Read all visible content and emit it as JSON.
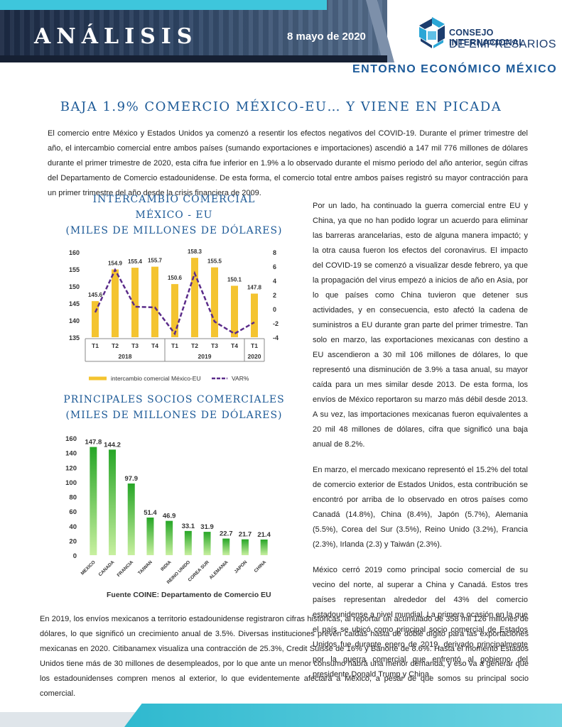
{
  "header": {
    "title": "ANÁLISIS",
    "date": "8 mayo de 2020",
    "logo_line1": "CONSEJO INTERNACIONAL",
    "logo_line2": "DE EMPRESARIOS",
    "subtitle": "ENTORNO ECONÓMICO MÉXICO"
  },
  "article": {
    "title": "BAJA 1.9% COMERCIO MÉXICO-EU… Y VIENE EN PICADA",
    "intro": "El comercio entre México y Estados Unidos ya comenzó a resentir los efectos negativos del COVID-19. Durante el primer trimestre del año, el intercambio comercial entre ambos países (sumando exportaciones e importaciones) ascendió a 147 mil 776 millones de dólares durante el primer trimestre de 2020, esta cifra fue inferior en 1.9% a lo observado durante el mismo periodo del año anterior, según cifras del Departamento de Comercio estadounidense. De esta forma, el comercio total entre ambos países registró su mayor contracción para un primer trimestre del año desde la crisis financiera de 2009.",
    "right_p1": "Por un lado, ha continuado la guerra comercial entre EU y China, ya que no han podido lograr un acuerdo para eliminar las barreras arancelarias, esto de alguna manera impactó; y la otra causa fueron los efectos del coronavirus. El impacto del COVID-19 se comenzó a visualizar desde febrero, ya que la propagación del virus empezó a inicios de año en Asia, por lo que países como China tuvieron que detener sus actividades, y en consecuencia, esto afectó la cadena de suministros a EU durante gran parte del primer trimestre. Tan solo en marzo, las exportaciones mexicanas con destino a EU ascendieron a 30 mil 106 millones de dólares, lo que representó una disminución de 3.9% a tasa anual, su mayor caída para un mes similar desde 2013. De esta forma, los envíos de México reportaron su marzo más débil desde 2013. A su vez, las importaciones mexicanas fueron equivalentes a 20 mil 48 millones de dólares, cifra que significó una baja anual de 8.2%.",
    "right_p2": "En marzo, el mercado mexicano representó el 15.2% del total de comercio exterior de Estados Unidos, esta contribución se encontró por arriba de lo observado en otros países como Canadá (14.8%), China (8.4%), Japón (5.7%), Alemania (5.5%), Corea del Sur (3.5%), Reino Unido (3.2%), Francia (2.3%), Irlanda (2.3) y Taiwán (2.3%).",
    "right_p3": "México cerró 2019 como principal socio comercial de su vecino del norte, al superar a China y Canadá. Estos tres países representan alrededor del 43% del comercio estadounidense a nivel mundial. La primera ocasión en la que el país se ubicó como principal socio comercial de Estados Unidos fue durante enero de 2019, derivado principalmente por la guerra comercial que enfrentó al gobierno del presidente Donald Trump y China.",
    "bottom": "En 2019, los envíos mexicanos a territorio estadounidense registraron cifras históricas, al reportar un acumulado de 358 mil 126 millones de dólares, lo que significó un crecimiento anual de 3.5%. Diversas instituciones prevén caídas hasta de doble dígito para las exportaciones mexicanas en 2020. Citibanamex visualiza una contracción de 25.3%, Credit Suisse de 16% y Banorte de 8.6%. Hasta el momento Estados Unidos tiene más de 30 millones de desempleados, por lo que ante un menor consumo habrá una menor demanda, y eso va a generar que los estadounidenses compren menos al exterior, lo que evidentemente afectará a México, a pesar de que somos su principal socio comercial."
  },
  "charts_text": {
    "chart1_title_l1": "INTERCAMBIO COMERCIAL",
    "chart1_title_l2": "MÉXICO - EU",
    "chart1_title_l3": "(MILES DE MILLONES DE DÓLARES)",
    "chart2_title_l1": "PRINCIPALES SOCIOS COMERCIALES",
    "chart2_title_l2": "(MILES DE MILLONES DE DÓLARES)",
    "source": "Fuente COINE: Departamento de Comercio EU"
  },
  "chart_data": [
    {
      "type": "bar",
      "title": "INTERCAMBIO COMERCIAL MÉXICO - EU (MILES DE MILLONES DE DÓLARES)",
      "categories": [
        "T1",
        "T2",
        "T3",
        "T4",
        "T1",
        "T2",
        "T3",
        "T4",
        "T1"
      ],
      "groups": [
        {
          "label": "2018",
          "count": 4
        },
        {
          "label": "2019",
          "count": 4
        },
        {
          "label": "2020",
          "count": 1
        }
      ],
      "series": [
        {
          "name": "intercambio comercial México-EU",
          "type": "bar",
          "color": "#f4c430",
          "values": [
            145.6,
            154.9,
            155.4,
            155.7,
            150.6,
            158.3,
            155.5,
            150.1,
            147.8
          ]
        },
        {
          "name": "VAR%",
          "type": "line",
          "color": "#5b2c8a",
          "axis": "right",
          "values": [
            -0.5,
            5.5,
            0.3,
            0.2,
            -3.5,
            5.0,
            -1.8,
            -3.5,
            -1.9
          ]
        }
      ],
      "ylim": [
        135,
        160
      ],
      "yticks": [
        135,
        140,
        145,
        150,
        155,
        160
      ],
      "y2lim": [
        -4,
        8
      ],
      "y2ticks": [
        -4,
        -2,
        0,
        2,
        4,
        6,
        8
      ],
      "legend": "bottom"
    },
    {
      "type": "bar",
      "title": "PRINCIPALES SOCIOS COMERCIALES (MILES DE MILLONES DE DÓLARES)",
      "categories": [
        "MEXICO",
        "CANADA",
        "FRANCIA",
        "TAIWAN",
        "INDIA",
        "REINO UNIDO",
        "COREA SUR",
        "ALEMANIA",
        "JAPON",
        "CHINA"
      ],
      "values": [
        147.8,
        144.2,
        97.9,
        51.4,
        46.9,
        33.1,
        31.9,
        22.7,
        21.7,
        21.4
      ],
      "ylim": [
        0,
        160
      ],
      "yticks": [
        0,
        20,
        40,
        60,
        80,
        100,
        120,
        140,
        160
      ],
      "color": "#3fb83f"
    }
  ]
}
